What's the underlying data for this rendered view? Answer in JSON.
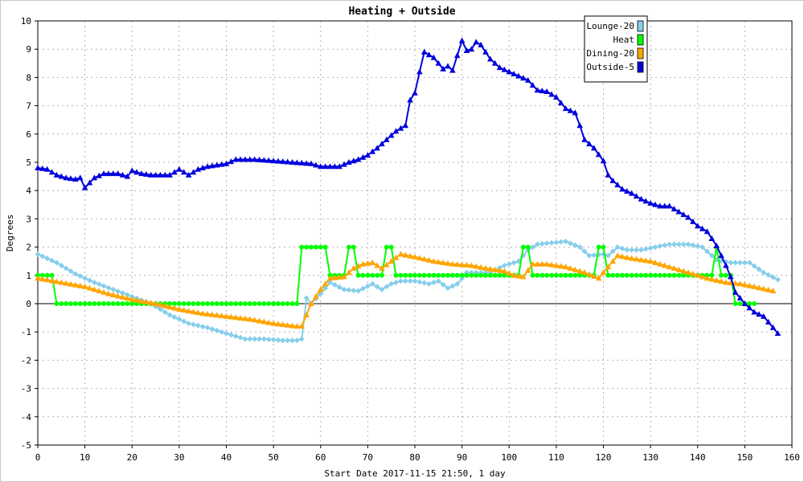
{
  "chart_data": {
    "type": "line",
    "title": "Heating + Outside",
    "xlabel": "Start Date 2017-11-15 21:50, 1 day",
    "ylabel": "Degrees",
    "xlim": [
      0,
      160
    ],
    "ylim": [
      -5,
      10
    ],
    "xticks": [
      0,
      10,
      20,
      30,
      40,
      50,
      60,
      70,
      80,
      90,
      100,
      110,
      120,
      130,
      140,
      150,
      160
    ],
    "yticks": [
      -5,
      -4,
      -3,
      -2,
      -1,
      0,
      1,
      2,
      3,
      4,
      5,
      6,
      7,
      8,
      9,
      10
    ],
    "grid": true,
    "legend_position": "top-right",
    "series": [
      {
        "name": "Lounge-20",
        "color": "#87ceeb",
        "marker": "diamond",
        "points": [
          [
            0,
            1.75
          ],
          [
            4,
            1.45
          ],
          [
            8,
            1.05
          ],
          [
            12,
            0.75
          ],
          [
            16,
            0.5
          ],
          [
            20,
            0.25
          ],
          [
            24,
            0.0
          ],
          [
            28,
            -0.4
          ],
          [
            32,
            -0.7
          ],
          [
            36,
            -0.85
          ],
          [
            40,
            -1.05
          ],
          [
            44,
            -1.25
          ],
          [
            48,
            -1.25
          ],
          [
            52,
            -1.3
          ],
          [
            55,
            -1.3
          ],
          [
            56,
            -1.25
          ],
          [
            57,
            0.2
          ],
          [
            58,
            0.0
          ],
          [
            60,
            0.35
          ],
          [
            62,
            0.75
          ],
          [
            65,
            0.5
          ],
          [
            68,
            0.45
          ],
          [
            71,
            0.7
          ],
          [
            73,
            0.5
          ],
          [
            75,
            0.7
          ],
          [
            77,
            0.8
          ],
          [
            80,
            0.8
          ],
          [
            83,
            0.7
          ],
          [
            85,
            0.8
          ],
          [
            87,
            0.55
          ],
          [
            89,
            0.7
          ],
          [
            91,
            1.1
          ],
          [
            93,
            1.1
          ],
          [
            96,
            1.1
          ],
          [
            99,
            1.35
          ],
          [
            102,
            1.5
          ],
          [
            104,
            1.9
          ],
          [
            106,
            2.1
          ],
          [
            109,
            2.15
          ],
          [
            112,
            2.2
          ],
          [
            115,
            2.0
          ],
          [
            117,
            1.7
          ],
          [
            120,
            1.75
          ],
          [
            121,
            1.7
          ],
          [
            123,
            2.0
          ],
          [
            125,
            1.9
          ],
          [
            128,
            1.9
          ],
          [
            131,
            2.0
          ],
          [
            134,
            2.1
          ],
          [
            138,
            2.1
          ],
          [
            141,
            2.0
          ],
          [
            144,
            1.55
          ],
          [
            147,
            1.45
          ],
          [
            151,
            1.45
          ],
          [
            154,
            1.1
          ],
          [
            157,
            0.85
          ]
        ]
      },
      {
        "name": "Heat",
        "color": "#00ff00",
        "marker": "circle",
        "points": [
          [
            0,
            1
          ],
          [
            3,
            1
          ],
          [
            4,
            0
          ],
          [
            55,
            0
          ],
          [
            56,
            2
          ],
          [
            61,
            2
          ],
          [
            62,
            1
          ],
          [
            65,
            1
          ],
          [
            66,
            2
          ],
          [
            67,
            2
          ],
          [
            68,
            1
          ],
          [
            73,
            1
          ],
          [
            74,
            2
          ],
          [
            75,
            2
          ],
          [
            76,
            1
          ],
          [
            102,
            1
          ],
          [
            103,
            2
          ],
          [
            104,
            2
          ],
          [
            105,
            1
          ],
          [
            118,
            1
          ],
          [
            119,
            2
          ],
          [
            120,
            2
          ],
          [
            121,
            1
          ],
          [
            143,
            1
          ],
          [
            144,
            2
          ],
          [
            145,
            1
          ],
          [
            147,
            1
          ],
          [
            148,
            0
          ],
          [
            152,
            0
          ]
        ]
      },
      {
        "name": "Dining-20",
        "color": "#ffa500",
        "marker": "triangle",
        "points": [
          [
            0,
            0.9
          ],
          [
            5,
            0.75
          ],
          [
            10,
            0.6
          ],
          [
            15,
            0.35
          ],
          [
            20,
            0.15
          ],
          [
            25,
            0.0
          ],
          [
            30,
            -0.2
          ],
          [
            35,
            -0.35
          ],
          [
            40,
            -0.45
          ],
          [
            45,
            -0.55
          ],
          [
            50,
            -0.7
          ],
          [
            55,
            -0.8
          ],
          [
            56,
            -0.8
          ],
          [
            58,
            0.0
          ],
          [
            60,
            0.5
          ],
          [
            62,
            0.9
          ],
          [
            65,
            0.95
          ],
          [
            67,
            1.25
          ],
          [
            69,
            1.4
          ],
          [
            71,
            1.45
          ],
          [
            73,
            1.25
          ],
          [
            75,
            1.5
          ],
          [
            77,
            1.75
          ],
          [
            80,
            1.65
          ],
          [
            84,
            1.5
          ],
          [
            88,
            1.4
          ],
          [
            92,
            1.35
          ],
          [
            95,
            1.25
          ],
          [
            99,
            1.15
          ],
          [
            101,
            1.0
          ],
          [
            103,
            0.95
          ],
          [
            105,
            1.4
          ],
          [
            108,
            1.4
          ],
          [
            112,
            1.3
          ],
          [
            116,
            1.1
          ],
          [
            119,
            0.9
          ],
          [
            122,
            1.5
          ],
          [
            123,
            1.7
          ],
          [
            126,
            1.6
          ],
          [
            130,
            1.5
          ],
          [
            134,
            1.3
          ],
          [
            138,
            1.1
          ],
          [
            142,
            0.9
          ],
          [
            146,
            0.75
          ],
          [
            149,
            0.7
          ],
          [
            152,
            0.6
          ],
          [
            156,
            0.45
          ]
        ]
      },
      {
        "name": "Outside-5",
        "color": "#0000dd",
        "marker": "triangle",
        "points": [
          [
            0,
            4.8
          ],
          [
            2,
            4.75
          ],
          [
            4,
            4.55
          ],
          [
            6,
            4.45
          ],
          [
            8,
            4.4
          ],
          [
            9,
            4.45
          ],
          [
            10,
            4.1
          ],
          [
            12,
            4.45
          ],
          [
            14,
            4.6
          ],
          [
            17,
            4.6
          ],
          [
            19,
            4.5
          ],
          [
            20,
            4.7
          ],
          [
            22,
            4.6
          ],
          [
            24,
            4.55
          ],
          [
            28,
            4.55
          ],
          [
            30,
            4.75
          ],
          [
            32,
            4.55
          ],
          [
            34,
            4.75
          ],
          [
            36,
            4.85
          ],
          [
            40,
            4.95
          ],
          [
            42,
            5.1
          ],
          [
            46,
            5.1
          ],
          [
            50,
            5.05
          ],
          [
            54,
            5.0
          ],
          [
            58,
            4.95
          ],
          [
            60,
            4.85
          ],
          [
            64,
            4.85
          ],
          [
            66,
            5.0
          ],
          [
            68,
            5.1
          ],
          [
            70,
            5.25
          ],
          [
            72,
            5.5
          ],
          [
            74,
            5.8
          ],
          [
            76,
            6.1
          ],
          [
            78,
            6.3
          ],
          [
            79,
            7.2
          ],
          [
            80,
            7.45
          ],
          [
            81,
            8.2
          ],
          [
            82,
            8.9
          ],
          [
            83,
            8.8
          ],
          [
            84,
            8.7
          ],
          [
            86,
            8.3
          ],
          [
            87,
            8.4
          ],
          [
            88,
            8.25
          ],
          [
            90,
            9.3
          ],
          [
            91,
            8.95
          ],
          [
            92,
            9.0
          ],
          [
            93,
            9.25
          ],
          [
            94,
            9.15
          ],
          [
            96,
            8.65
          ],
          [
            98,
            8.35
          ],
          [
            100,
            8.2
          ],
          [
            102,
            8.05
          ],
          [
            104,
            7.9
          ],
          [
            106,
            7.55
          ],
          [
            108,
            7.5
          ],
          [
            110,
            7.3
          ],
          [
            112,
            6.9
          ],
          [
            114,
            6.75
          ],
          [
            115,
            6.3
          ],
          [
            116,
            5.8
          ],
          [
            118,
            5.5
          ],
          [
            120,
            5.05
          ],
          [
            121,
            4.55
          ],
          [
            122,
            4.35
          ],
          [
            124,
            4.05
          ],
          [
            126,
            3.9
          ],
          [
            128,
            3.7
          ],
          [
            130,
            3.55
          ],
          [
            132,
            3.45
          ],
          [
            134,
            3.45
          ],
          [
            136,
            3.25
          ],
          [
            138,
            3.05
          ],
          [
            140,
            2.75
          ],
          [
            142,
            2.55
          ],
          [
            144,
            2.05
          ],
          [
            146,
            1.35
          ],
          [
            147,
            0.95
          ],
          [
            148,
            0.4
          ],
          [
            150,
            0.0
          ],
          [
            152,
            -0.3
          ],
          [
            154,
            -0.45
          ],
          [
            156,
            -0.85
          ],
          [
            157,
            -1.05
          ]
        ]
      }
    ]
  }
}
